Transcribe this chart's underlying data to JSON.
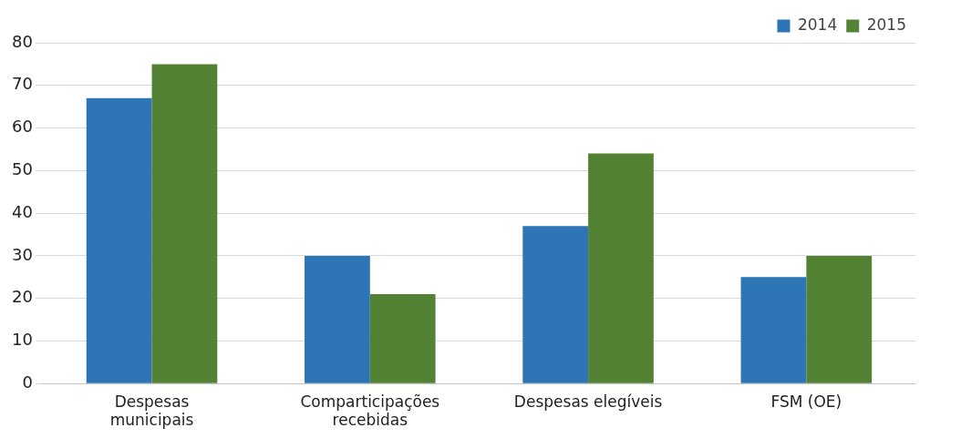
{
  "chart_data": {
    "type": "bar",
    "categories": [
      [
        "Despesas",
        "municipais"
      ],
      [
        "Comparticipações",
        "recebidas"
      ],
      "Despesas elegíveis",
      "FSM (OE)"
    ],
    "series": [
      {
        "name": "2014",
        "color": "#2e75b6",
        "values": [
          67,
          30,
          37,
          25
        ]
      },
      {
        "name": "2015",
        "color": "#548235",
        "values": [
          75,
          21,
          54,
          30
        ]
      }
    ],
    "ylim": [
      0,
      80
    ],
    "yticks": [
      0,
      10,
      20,
      30,
      40,
      50,
      60,
      70,
      80
    ],
    "grid": "y",
    "legend": "top right"
  }
}
